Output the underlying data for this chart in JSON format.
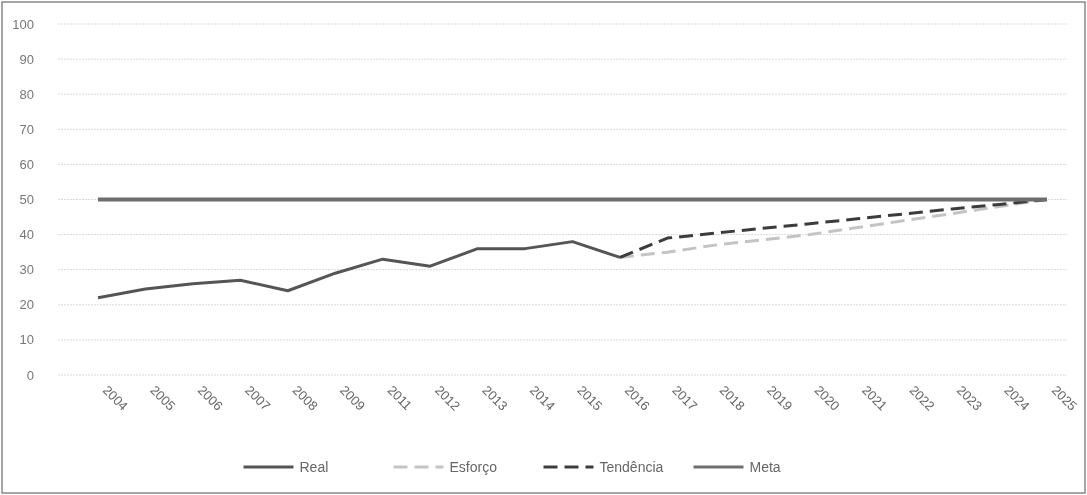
{
  "chart_data": {
    "type": "line",
    "categories": [
      "2004",
      "2005",
      "2006",
      "2007",
      "2008",
      "2009",
      "2011",
      "2012",
      "2013",
      "2014",
      "2015",
      "2016",
      "2017",
      "2018",
      "2019",
      "2020",
      "2021",
      "2022",
      "2023",
      "2024",
      "2025"
    ],
    "series": [
      {
        "name": "Real",
        "color": "#555555",
        "line_style": "solid",
        "values": [
          22,
          24.5,
          26,
          27,
          24,
          29,
          33,
          31,
          36,
          36,
          38,
          33.5,
          null,
          null,
          null,
          null,
          null,
          null,
          null,
          null,
          null
        ]
      },
      {
        "name": "Esforço",
        "color": "#c4c4c4",
        "line_style": "dashed",
        "values": [
          null,
          null,
          null,
          null,
          null,
          null,
          null,
          null,
          null,
          null,
          null,
          33.5,
          35,
          37,
          38.5,
          40,
          42,
          44,
          46,
          48,
          50
        ]
      },
      {
        "name": "Tendência",
        "color": "#3c3c3c",
        "line_style": "dashed",
        "values": [
          null,
          null,
          null,
          null,
          null,
          null,
          null,
          null,
          null,
          null,
          null,
          33.5,
          39,
          40.4,
          41.8,
          43.1,
          44.5,
          45.9,
          47.3,
          48.6,
          50
        ]
      },
      {
        "name": "Meta",
        "color": "#6e6e6e",
        "line_style": "solid",
        "values": [
          50,
          50,
          50,
          50,
          50,
          50,
          50,
          50,
          50,
          50,
          50,
          50,
          50,
          50,
          50,
          50,
          50,
          50,
          50,
          50,
          50
        ]
      }
    ],
    "ylim": [
      0,
      100
    ],
    "yticks": [
      0,
      10,
      20,
      30,
      40,
      50,
      60,
      70,
      80,
      90,
      100
    ],
    "grid": "y",
    "legend": "bottom",
    "marker": "none"
  }
}
